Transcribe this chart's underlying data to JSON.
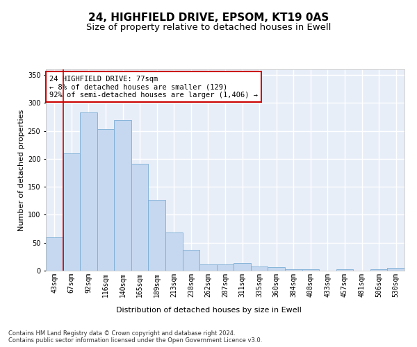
{
  "title": "24, HIGHFIELD DRIVE, EPSOM, KT19 0AS",
  "subtitle": "Size of property relative to detached houses in Ewell",
  "xlabel": "Distribution of detached houses by size in Ewell",
  "ylabel": "Number of detached properties",
  "bar_color": "#c5d8f0",
  "bar_edge_color": "#7aadd4",
  "background_color": "#e8eef8",
  "grid_color": "#ffffff",
  "categories": [
    "43sqm",
    "67sqm",
    "92sqm",
    "116sqm",
    "140sqm",
    "165sqm",
    "189sqm",
    "213sqm",
    "238sqm",
    "262sqm",
    "287sqm",
    "311sqm",
    "335sqm",
    "360sqm",
    "384sqm",
    "408sqm",
    "433sqm",
    "457sqm",
    "481sqm",
    "506sqm",
    "530sqm"
  ],
  "values": [
    60,
    210,
    283,
    253,
    270,
    191,
    127,
    68,
    37,
    11,
    11,
    14,
    8,
    6,
    3,
    3,
    0,
    3,
    0,
    3,
    5
  ],
  "ylim": [
    0,
    360
  ],
  "yticks": [
    0,
    50,
    100,
    150,
    200,
    250,
    300,
    350
  ],
  "property_line_x": 0.5,
  "annotation_text": "24 HIGHFIELD DRIVE: 77sqm\n← 8% of detached houses are smaller (129)\n92% of semi-detached houses are larger (1,406) →",
  "annotation_box_color": "#ffffff",
  "annotation_box_edge": "#cc0000",
  "property_line_color": "#cc0000",
  "footer": "Contains HM Land Registry data © Crown copyright and database right 2024.\nContains public sector information licensed under the Open Government Licence v3.0.",
  "title_fontsize": 11,
  "subtitle_fontsize": 9.5,
  "xlabel_fontsize": 8,
  "ylabel_fontsize": 8,
  "tick_fontsize": 7,
  "annotation_fontsize": 7.5,
  "footer_fontsize": 6
}
